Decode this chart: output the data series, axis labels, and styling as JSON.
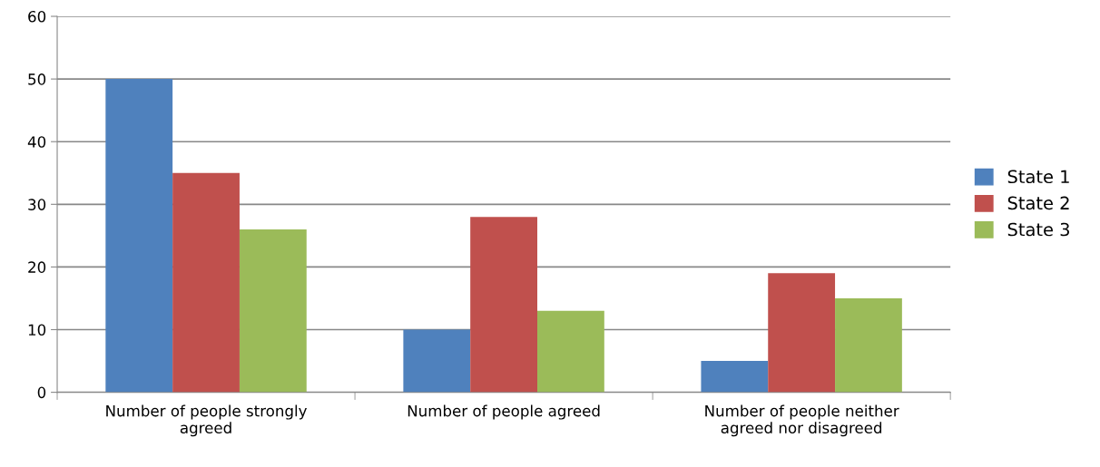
{
  "chart_data": {
    "type": "bar",
    "categories": [
      "Number of people strongly\nagreed",
      "Number of people agreed",
      "Number of people neither\nagreed nor disagreed"
    ],
    "series": [
      {
        "name": "State 1",
        "color": "#4f81bd",
        "values": [
          50,
          10,
          5
        ]
      },
      {
        "name": "State 2",
        "color": "#c0504d",
        "values": [
          35,
          28,
          19
        ]
      },
      {
        "name": "State 3",
        "color": "#9bbb59",
        "values": [
          26,
          13,
          15
        ]
      }
    ],
    "ylim": [
      0,
      60
    ],
    "yticks": [
      0,
      10,
      20,
      30,
      40,
      50,
      60
    ],
    "grid": "y",
    "legend": "right"
  }
}
